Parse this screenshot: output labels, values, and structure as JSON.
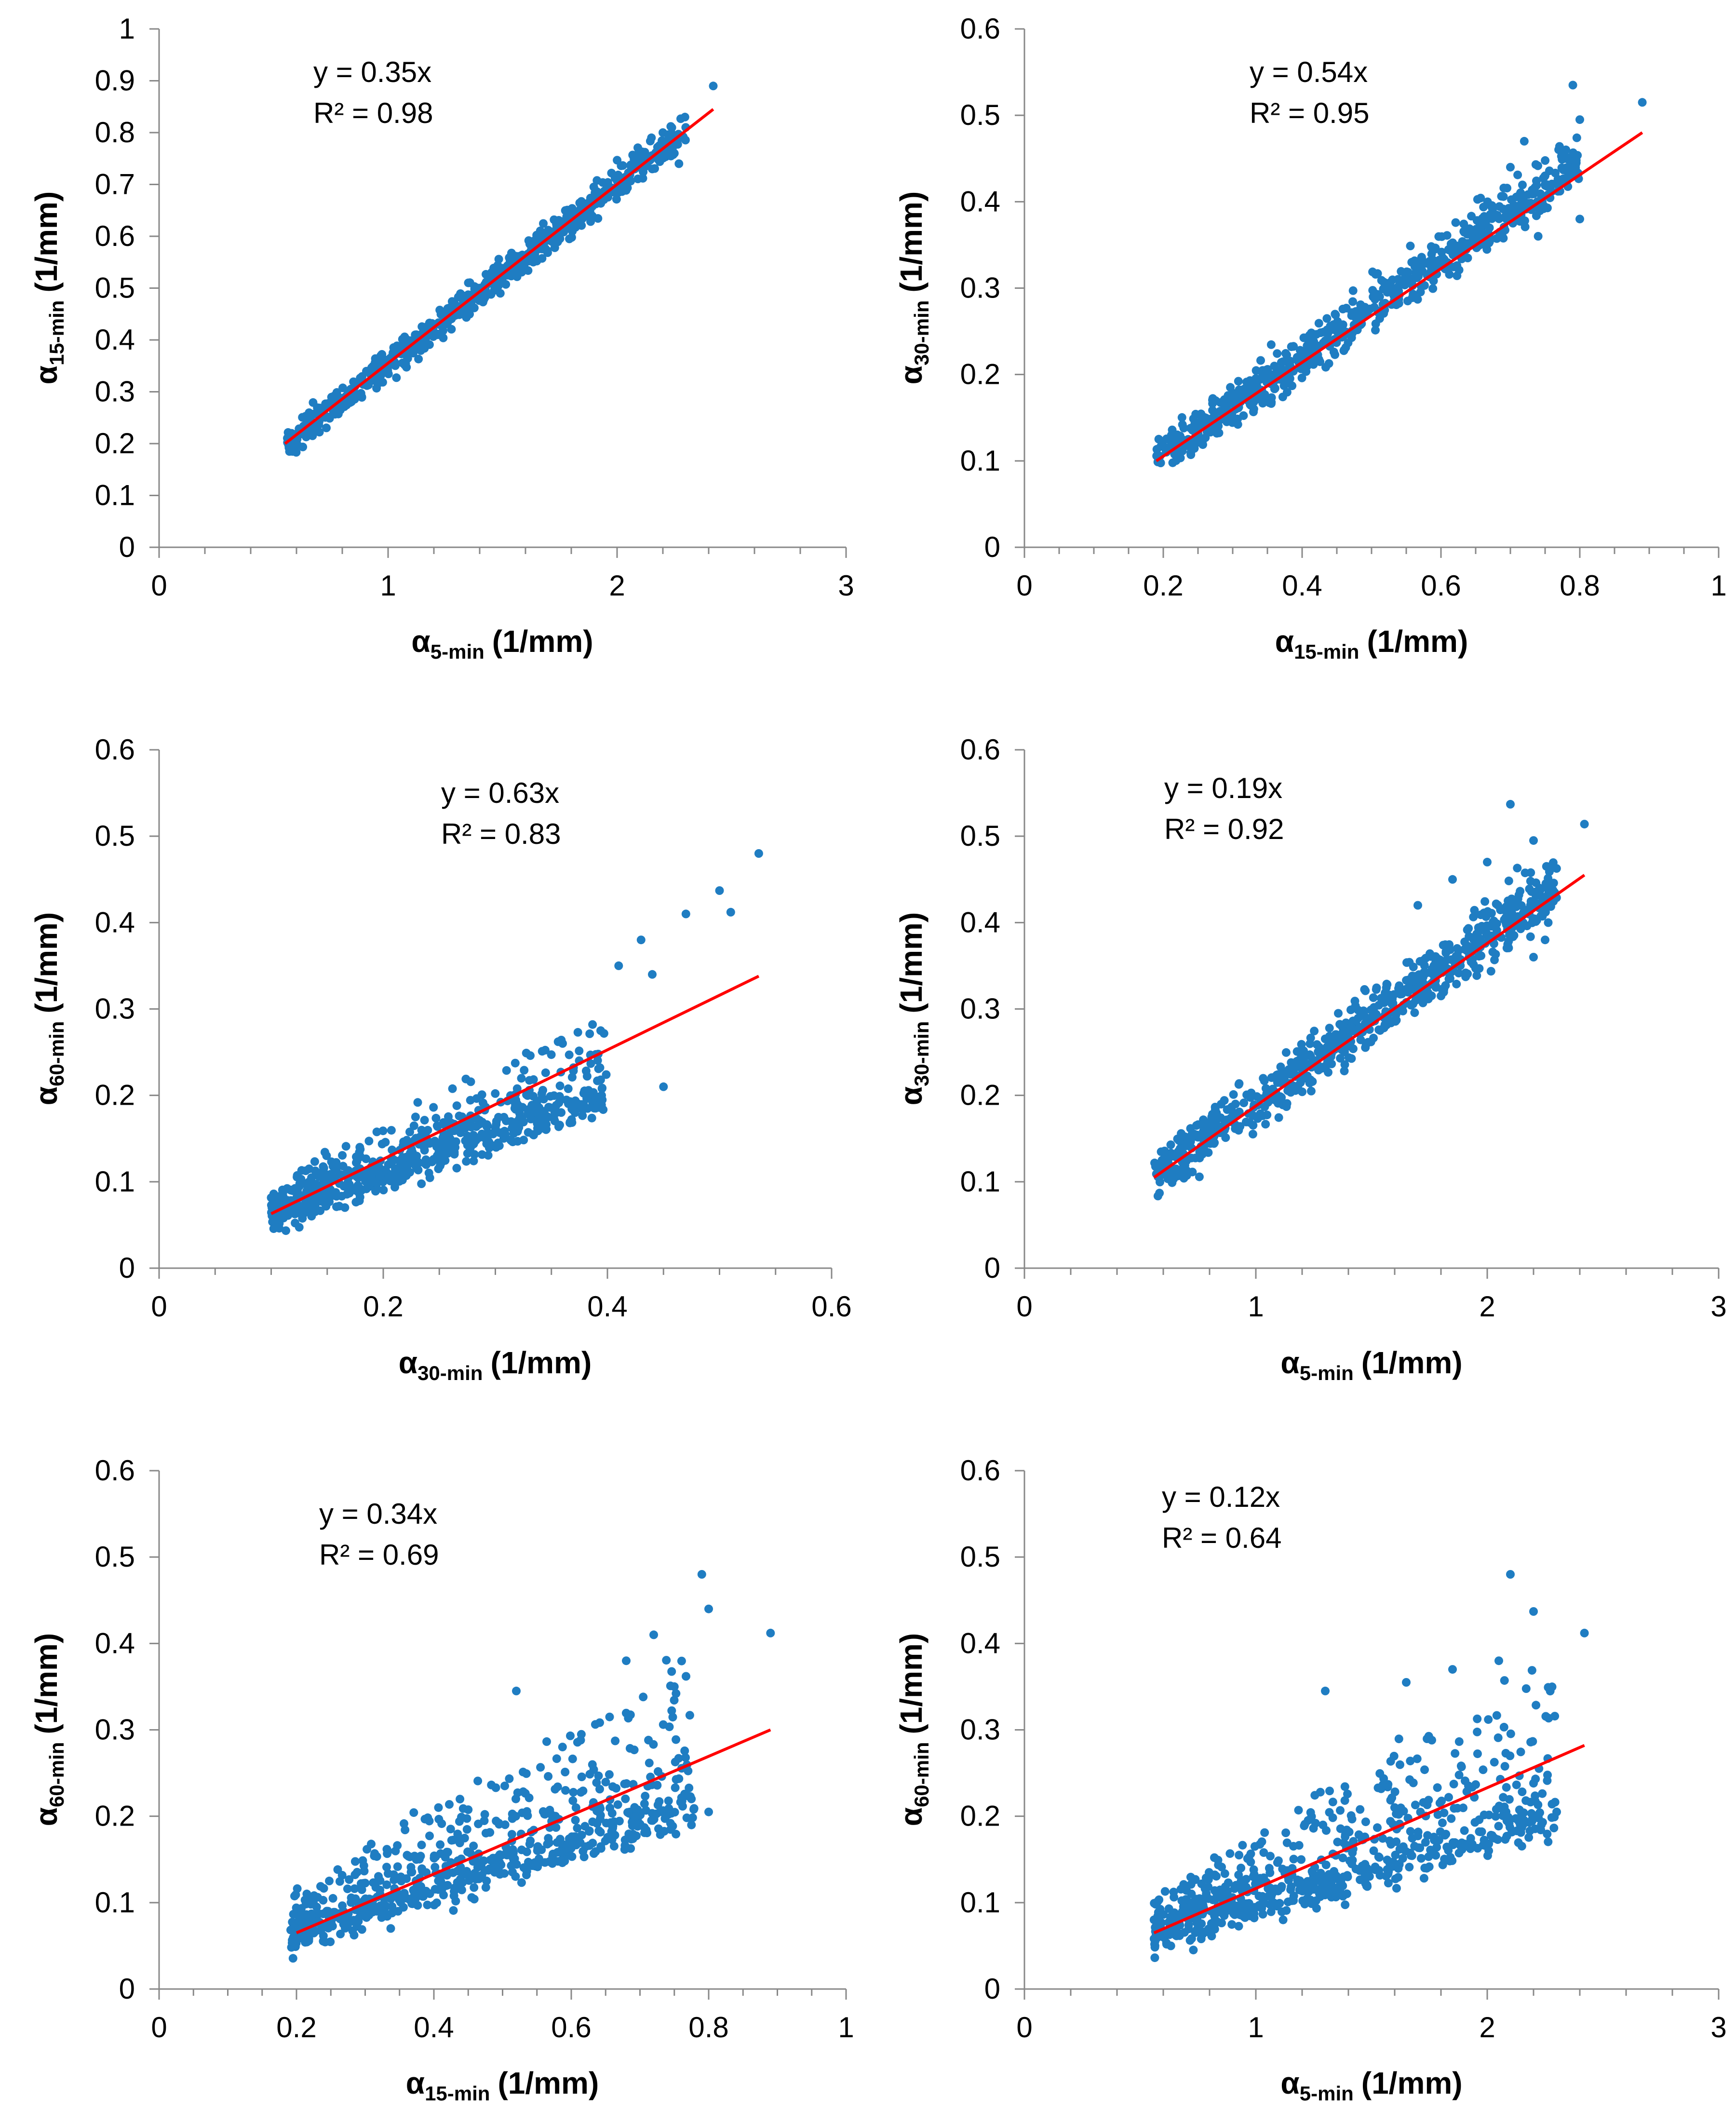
{
  "colors": {
    "points": "#1F7DC2",
    "trendline": "#FF0000",
    "axis": "#888888"
  },
  "chart_data": [
    {
      "type": "scatter",
      "xlabel": {
        "symbol": "α",
        "sub": "5-min",
        "unit": "(1/mm)"
      },
      "ylabel": {
        "symbol": "α",
        "sub": "15-min",
        "unit": "(1/mm)"
      },
      "xlim": [
        0,
        3
      ],
      "ylim": [
        0,
        1
      ],
      "xticks": [
        0,
        1,
        2,
        3
      ],
      "yticks": [
        0,
        0.1,
        0.2,
        0.3,
        0.4,
        0.5,
        0.6,
        0.7,
        0.8,
        0.9,
        1
      ],
      "xtick_labels": [
        "0",
        "1",
        "2",
        "3"
      ],
      "ytick_labels": [
        "0",
        "0.1",
        "0.2",
        "0.3",
        "0.4",
        "0.5",
        "0.6",
        "0.7",
        "0.8",
        "0.9",
        "1"
      ],
      "x_minor_step": 0.2,
      "equation": "y = 0.35x",
      "r2": "R² = 0.98",
      "trend": {
        "x": [
          0.55,
          2.42
        ],
        "y": [
          0.2,
          0.845
        ]
      },
      "cloud": {
        "x_min": 0.56,
        "x_max": 2.3,
        "shape": 1.0,
        "a": 0.2,
        "b": 0.345,
        "spread": 0.015,
        "upper": 0.012,
        "n": 700
      },
      "outliers": [
        [
          2.42,
          0.89
        ],
        [
          2.25,
          0.76
        ],
        [
          2.27,
          0.74
        ],
        [
          2.2,
          0.8
        ],
        [
          2.1,
          0.76
        ],
        [
          1.9,
          0.67
        ],
        [
          2.15,
          0.79
        ],
        [
          2.05,
          0.72
        ]
      ]
    },
    {
      "type": "scatter",
      "xlabel": {
        "symbol": "α",
        "sub": "15-min",
        "unit": "(1/mm)"
      },
      "ylabel": {
        "symbol": "α",
        "sub": "30-min",
        "unit": "(1/mm)"
      },
      "xlim": [
        0,
        1
      ],
      "ylim": [
        0,
        0.6
      ],
      "xticks": [
        0,
        0.2,
        0.4,
        0.6,
        0.8,
        1
      ],
      "yticks": [
        0,
        0.1,
        0.2,
        0.3,
        0.4,
        0.5,
        0.6
      ],
      "xtick_labels": [
        "0",
        "0.2",
        "0.4",
        "0.6",
        "0.8",
        "1"
      ],
      "ytick_labels": [
        "0",
        "0.1",
        "0.2",
        "0.3",
        "0.4",
        "0.5",
        "0.6"
      ],
      "x_minor_step": 0.05,
      "equation": "y = 0.54x",
      "r2": "R² = 0.95",
      "trend": {
        "x": [
          0.19,
          0.89
        ],
        "y": [
          0.1,
          0.48
        ]
      },
      "cloud": {
        "x_min": 0.19,
        "x_max": 0.8,
        "shape": 1.0,
        "a": 0.1,
        "b": 0.55,
        "spread": 0.012,
        "upper": 0.03,
        "n": 700
      },
      "outliers": [
        [
          0.79,
          0.535
        ],
        [
          0.89,
          0.515
        ],
        [
          0.8,
          0.495
        ],
        [
          0.72,
          0.47
        ],
        [
          0.78,
          0.46
        ],
        [
          0.7,
          0.44
        ],
        [
          0.75,
          0.43
        ],
        [
          0.8,
          0.38
        ],
        [
          0.74,
          0.36
        ]
      ]
    },
    {
      "type": "scatter",
      "xlabel": {
        "symbol": "α",
        "sub": "30-min",
        "unit": "(1/mm)"
      },
      "ylabel": {
        "symbol": "α",
        "sub": "60-min",
        "unit": "(1/mm)"
      },
      "xlim": [
        0,
        0.6
      ],
      "ylim": [
        0,
        0.6
      ],
      "xticks": [
        0,
        0.2,
        0.4,
        0.6
      ],
      "yticks": [
        0,
        0.1,
        0.2,
        0.3,
        0.4,
        0.5,
        0.6
      ],
      "xtick_labels": [
        "0",
        "0.2",
        "0.4",
        "0.6"
      ],
      "ytick_labels": [
        "0",
        "0.1",
        "0.2",
        "0.3",
        "0.4",
        "0.5",
        "0.6"
      ],
      "x_minor_step": 0.05,
      "equation": "y = 0.63x",
      "r2": "R² = 0.83",
      "trend": {
        "x": [
          0.1,
          0.535
        ],
        "y": [
          0.063,
          0.338
        ]
      },
      "cloud": {
        "x_min": 0.1,
        "x_max": 0.4,
        "shape": 1.2,
        "a": 0.06,
        "b": 0.45,
        "spread": 0.01,
        "upper": 0.08,
        "n": 650
      },
      "outliers": [
        [
          0.535,
          0.48
        ],
        [
          0.5,
          0.437
        ],
        [
          0.51,
          0.412
        ],
        [
          0.47,
          0.41
        ],
        [
          0.43,
          0.38
        ],
        [
          0.44,
          0.34
        ],
        [
          0.41,
          0.35
        ],
        [
          0.45,
          0.21
        ]
      ]
    },
    {
      "type": "scatter",
      "xlabel": {
        "symbol": "α",
        "sub": "5-min",
        "unit": "(1/mm)"
      },
      "ylabel": {
        "symbol": "α",
        "sub": "30-min",
        "unit": "(1/mm)"
      },
      "xlim": [
        0,
        3
      ],
      "ylim": [
        0,
        0.6
      ],
      "xticks": [
        0,
        1,
        2,
        3
      ],
      "yticks": [
        0,
        0.1,
        0.2,
        0.3,
        0.4,
        0.5,
        0.6
      ],
      "xtick_labels": [
        "0",
        "1",
        "2",
        "3"
      ],
      "ytick_labels": [
        "0",
        "0.1",
        "0.2",
        "0.3",
        "0.4",
        "0.5",
        "0.6"
      ],
      "x_minor_step": 0.2,
      "equation": "y = 0.19x",
      "r2": "R² = 0.92",
      "trend": {
        "x": [
          0.56,
          2.42
        ],
        "y": [
          0.105,
          0.455
        ]
      },
      "cloud": {
        "x_min": 0.56,
        "x_max": 2.3,
        "shape": 1.0,
        "a": 0.105,
        "b": 0.188,
        "spread": 0.014,
        "upper": 0.03,
        "n": 700
      },
      "outliers": [
        [
          2.1,
          0.537
        ],
        [
          2.42,
          0.514
        ],
        [
          2.2,
          0.495
        ],
        [
          2.0,
          0.47
        ],
        [
          2.28,
          0.43
        ],
        [
          1.85,
          0.45
        ],
        [
          1.7,
          0.42
        ],
        [
          2.25,
          0.38
        ],
        [
          2.2,
          0.36
        ]
      ]
    },
    {
      "type": "scatter",
      "xlabel": {
        "symbol": "α",
        "sub": "15-min",
        "unit": "(1/mm)"
      },
      "ylabel": {
        "symbol": "α",
        "sub": "60-min",
        "unit": "(1/mm)"
      },
      "xlim": [
        0,
        1
      ],
      "ylim": [
        0,
        0.6
      ],
      "xticks": [
        0,
        0.2,
        0.4,
        0.6,
        0.8,
        1
      ],
      "yticks": [
        0,
        0.1,
        0.2,
        0.3,
        0.4,
        0.5,
        0.6
      ],
      "xtick_labels": [
        "0",
        "0.2",
        "0.4",
        "0.6",
        "0.8",
        "1"
      ],
      "ytick_labels": [
        "0",
        "0.1",
        "0.2",
        "0.3",
        "0.4",
        "0.5",
        "0.6"
      ],
      "x_minor_step": 0.05,
      "equation": "y = 0.34x",
      "r2": "R² = 0.69",
      "trend": {
        "x": [
          0.2,
          0.89
        ],
        "y": [
          0.065,
          0.3
        ]
      },
      "cloud": {
        "x_min": 0.19,
        "x_max": 0.78,
        "shape": 1.2,
        "a": 0.058,
        "b": 0.25,
        "spread": 0.01,
        "upper": 0.15,
        "n": 700
      },
      "outliers": [
        [
          0.79,
          0.48
        ],
        [
          0.8,
          0.44
        ],
        [
          0.89,
          0.412
        ],
        [
          0.72,
          0.41
        ],
        [
          0.68,
          0.38
        ],
        [
          0.75,
          0.35
        ],
        [
          0.52,
          0.345
        ],
        [
          0.8,
          0.205
        ]
      ]
    },
    {
      "type": "scatter",
      "xlabel": {
        "symbol": "α",
        "sub": "5-min",
        "unit": "(1/mm)"
      },
      "ylabel": {
        "symbol": "α",
        "sub": "60-min",
        "unit": "(1/mm)"
      },
      "xlim": [
        0,
        3
      ],
      "ylim": [
        0,
        0.6
      ],
      "xticks": [
        0,
        1,
        2,
        3
      ],
      "yticks": [
        0,
        0.1,
        0.2,
        0.3,
        0.4,
        0.5,
        0.6
      ],
      "xtick_labels": [
        "0",
        "1",
        "2",
        "3"
      ],
      "ytick_labels": [
        "0",
        "0.1",
        "0.2",
        "0.3",
        "0.4",
        "0.5",
        "0.6"
      ],
      "x_minor_step": 0.2,
      "equation": "y = 0.12x",
      "r2": "R² = 0.64",
      "trend": {
        "x": [
          0.56,
          2.42
        ],
        "y": [
          0.065,
          0.282
        ]
      },
      "cloud": {
        "x_min": 0.56,
        "x_max": 2.3,
        "shape": 1.2,
        "a": 0.058,
        "b": 0.078,
        "spread": 0.01,
        "upper": 0.15,
        "n": 700
      },
      "outliers": [
        [
          2.1,
          0.48
        ],
        [
          2.2,
          0.437
        ],
        [
          2.42,
          0.412
        ],
        [
          2.05,
          0.38
        ],
        [
          1.85,
          0.37
        ],
        [
          1.3,
          0.345
        ],
        [
          1.65,
          0.355
        ],
        [
          2.3,
          0.205
        ]
      ]
    }
  ]
}
